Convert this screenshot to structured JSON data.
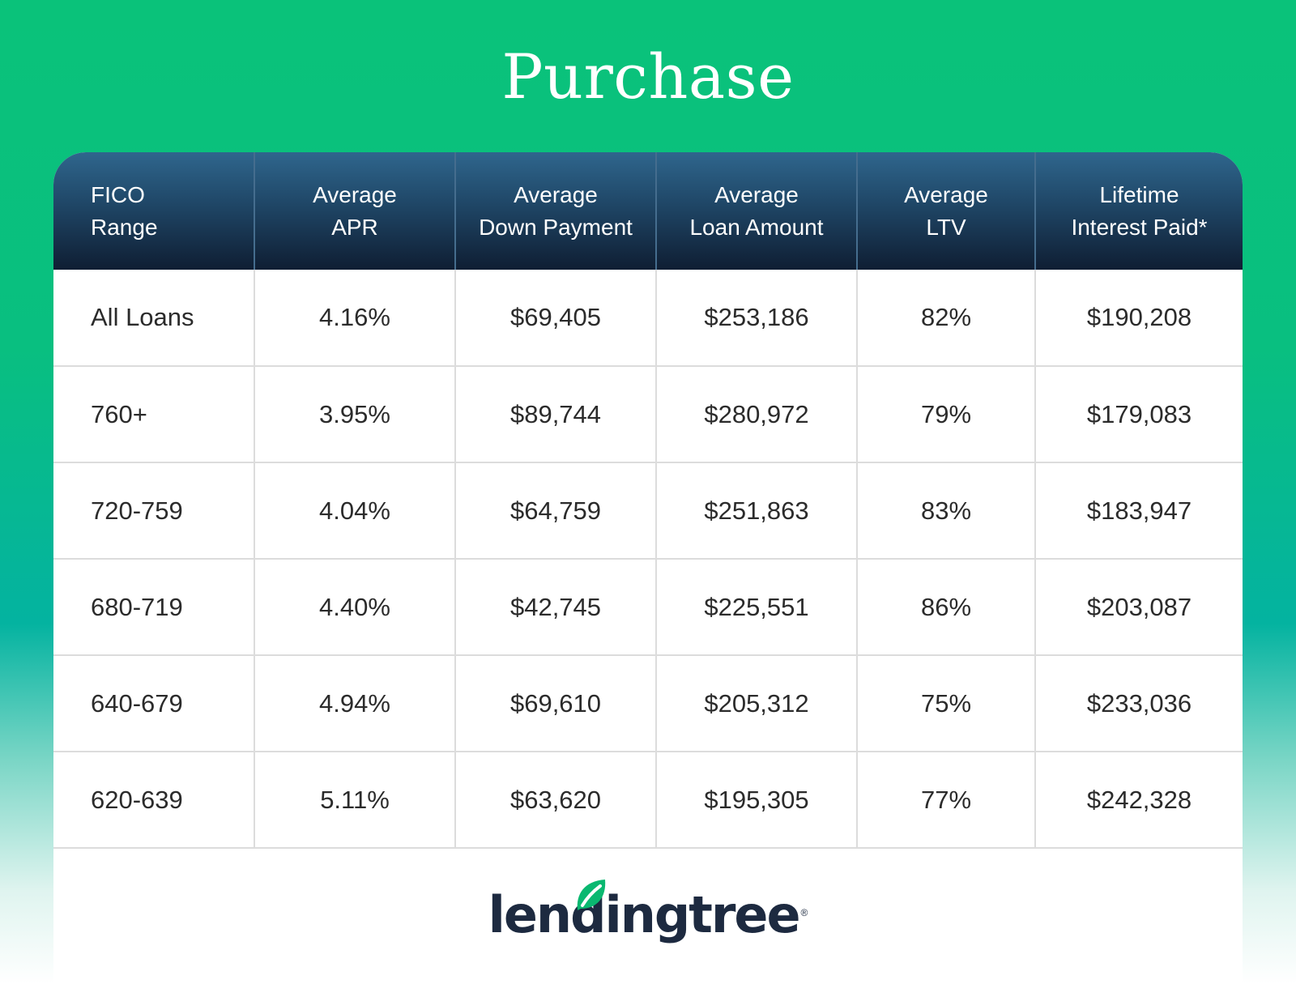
{
  "title": "Purchase",
  "columns": [
    {
      "line1": "FICO",
      "line2": "Range"
    },
    {
      "line1": "Average",
      "line2": "APR"
    },
    {
      "line1": "Average",
      "line2": "Down Payment"
    },
    {
      "line1": "Average",
      "line2": "Loan Amount"
    },
    {
      "line1": "Average",
      "line2": "LTV"
    },
    {
      "line1": "Lifetime",
      "line2": "Interest Paid*"
    }
  ],
  "rows": [
    [
      "All Loans",
      "4.16%",
      "$69,405",
      "$253,186",
      "82%",
      "$190,208"
    ],
    [
      "760+",
      "3.95%",
      "$89,744",
      "$280,972",
      "79%",
      "$179,083"
    ],
    [
      "720-759",
      "4.04%",
      "$64,759",
      "$251,863",
      "83%",
      "$183,947"
    ],
    [
      "680-719",
      "4.40%",
      "$42,745",
      "$225,551",
      "86%",
      "$203,087"
    ],
    [
      "640-679",
      "4.94%",
      "$69,610",
      "$205,312",
      "75%",
      "$233,036"
    ],
    [
      "620-639",
      "5.11%",
      "$63,620",
      "$195,305",
      "77%",
      "$242,328"
    ]
  ],
  "chart_data": {
    "type": "table",
    "title": "Purchase",
    "columns": [
      "FICO Range",
      "Average APR",
      "Average Down Payment",
      "Average Loan Amount",
      "Average LTV",
      "Lifetime Interest Paid*"
    ],
    "rows": [
      [
        "All Loans",
        4.16,
        69405,
        253186,
        82,
        190208
      ],
      [
        "760+",
        3.95,
        89744,
        280972,
        79,
        179083
      ],
      [
        "720-759",
        4.04,
        64759,
        251863,
        83,
        183947
      ],
      [
        "680-719",
        4.4,
        42745,
        225551,
        86,
        203087
      ],
      [
        "640-679",
        4.94,
        69610,
        205312,
        75,
        233036
      ],
      [
        "620-639",
        5.11,
        63620,
        195305,
        77,
        242328
      ]
    ]
  },
  "logo": {
    "text": "lendingtree",
    "mark": "®",
    "icon": "leaf-icon"
  },
  "colors": {
    "header_dark": "#0f1e33",
    "header_light": "#2f668d",
    "brand_green": "#0ac27a",
    "logo_navy": "#1d2a40"
  }
}
